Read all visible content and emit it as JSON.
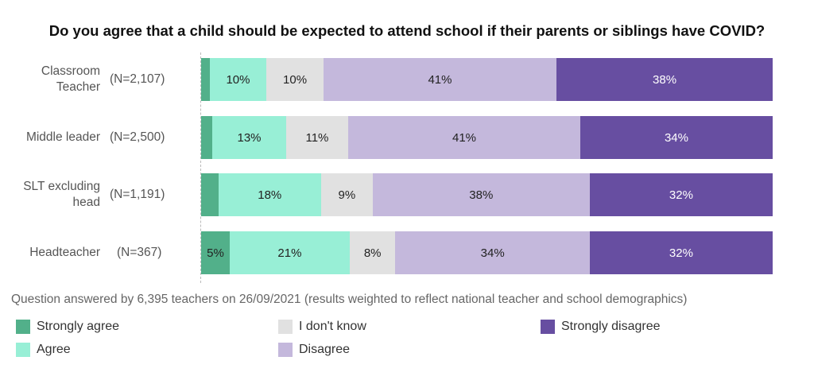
{
  "title": "Do you agree that a child should be expected to attend school if their parents or siblings have COVID?",
  "footnote": "Question answered by 6,395 teachers on 26/09/2021 (results weighted to reflect national teacher and school demographics)",
  "colors": {
    "Strongly agree": "#52b08a",
    "Agree": "#98efd6",
    "I don't know": "#e1e1e1",
    "Disagree": "#c4b8dc",
    "Strongly disagree": "#674ea1"
  },
  "chart_data": {
    "type": "bar",
    "orientation": "horizontal",
    "stacked": true,
    "title": "Do you agree that a child should be expected to attend school if their parents or siblings have COVID?",
    "xlabel": "",
    "ylabel": "",
    "xlim": [
      0,
      100
    ],
    "grid": false,
    "legend_position": "bottom",
    "categories": [
      {
        "label": "Classroom Teacher",
        "lines": [
          "Classroom",
          "Teacher"
        ],
        "n": "(N=2,107)"
      },
      {
        "label": "Middle leader",
        "lines": [
          "Middle leader"
        ],
        "n": "(N=2,500)"
      },
      {
        "label": "SLT excluding head",
        "lines": [
          "SLT excluding",
          "head"
        ],
        "n": "(N=1,191)"
      },
      {
        "label": "Headteacher",
        "lines": [
          "Headteacher"
        ],
        "n": "(N=367)"
      }
    ],
    "series": [
      {
        "name": "Strongly agree",
        "values": [
          1.5,
          2,
          3,
          5
        ],
        "labels": [
          "",
          "",
          "",
          "5%"
        ]
      },
      {
        "name": "Agree",
        "values": [
          10,
          13,
          18,
          21
        ],
        "labels": [
          "10%",
          "13%",
          "18%",
          "21%"
        ]
      },
      {
        "name": "I don't know",
        "values": [
          10,
          11,
          9,
          8
        ],
        "labels": [
          "10%",
          "11%",
          "9%",
          "8%"
        ]
      },
      {
        "name": "Disagree",
        "values": [
          41,
          41,
          38,
          34
        ],
        "labels": [
          "41%",
          "41%",
          "38%",
          "34%"
        ]
      },
      {
        "name": "Strongly disagree",
        "values": [
          38,
          34,
          32,
          32
        ],
        "labels": [
          "38%",
          "34%",
          "32%",
          "32%"
        ]
      }
    ]
  }
}
